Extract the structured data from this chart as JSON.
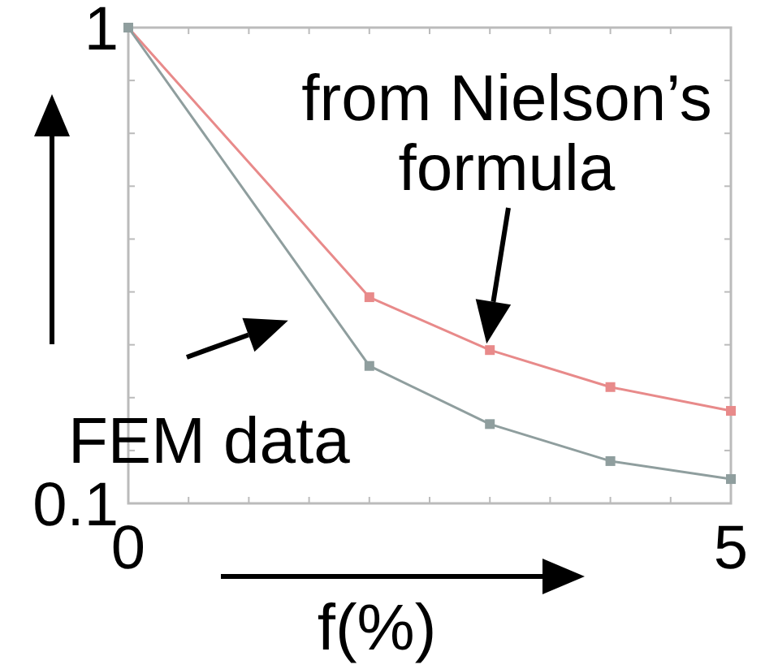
{
  "chart_data": {
    "type": "line",
    "xlabel": "f(%)",
    "x": [
      0,
      2,
      3,
      4,
      5
    ],
    "series": [
      {
        "color": "#e88a8a",
        "values": [
          1,
          0.49,
          0.39,
          0.32,
          0.275
        ]
      },
      {
        "color": "#8f9e9e",
        "values": [
          1,
          0.36,
          0.25,
          0.18,
          0.146
        ]
      }
    ],
    "xlim": [
      0,
      5
    ],
    "xticks": [
      0,
      {
        "value": 0.5,
        "label": null
      },
      {
        "value": 1,
        "label": null
      },
      {
        "value": 1.5,
        "label": null
      },
      {
        "value": 2,
        "label": null
      },
      {
        "value": 2.5,
        "label": null
      },
      {
        "value": 3,
        "label": null
      },
      {
        "value": 3.5,
        "label": null
      },
      {
        "value": 4,
        "label": null
      },
      {
        "value": 4.5,
        "label": null
      },
      5
    ],
    "ylim": [
      0.1,
      1
    ],
    "yticks": [
      0.1,
      {
        "value": 0.2,
        "label": null
      },
      {
        "value": 0.3,
        "label": null
      },
      {
        "value": 0.4,
        "label": null
      },
      {
        "value": 0.5,
        "label": null
      },
      {
        "value": 0.6,
        "label": null
      },
      {
        "value": 0.7,
        "label": null
      },
      {
        "value": 0.8,
        "label": null
      },
      {
        "value": 0.9,
        "label": null
      },
      1
    ],
    "marker": "square",
    "line_style": "solid",
    "annotations": [
      {
        "text": "from Nielson’s formula",
        "x": 3,
        "y": 0.39
      },
      {
        "text": "FEM data",
        "x": 2,
        "y": 0.36
      }
    ]
  }
}
